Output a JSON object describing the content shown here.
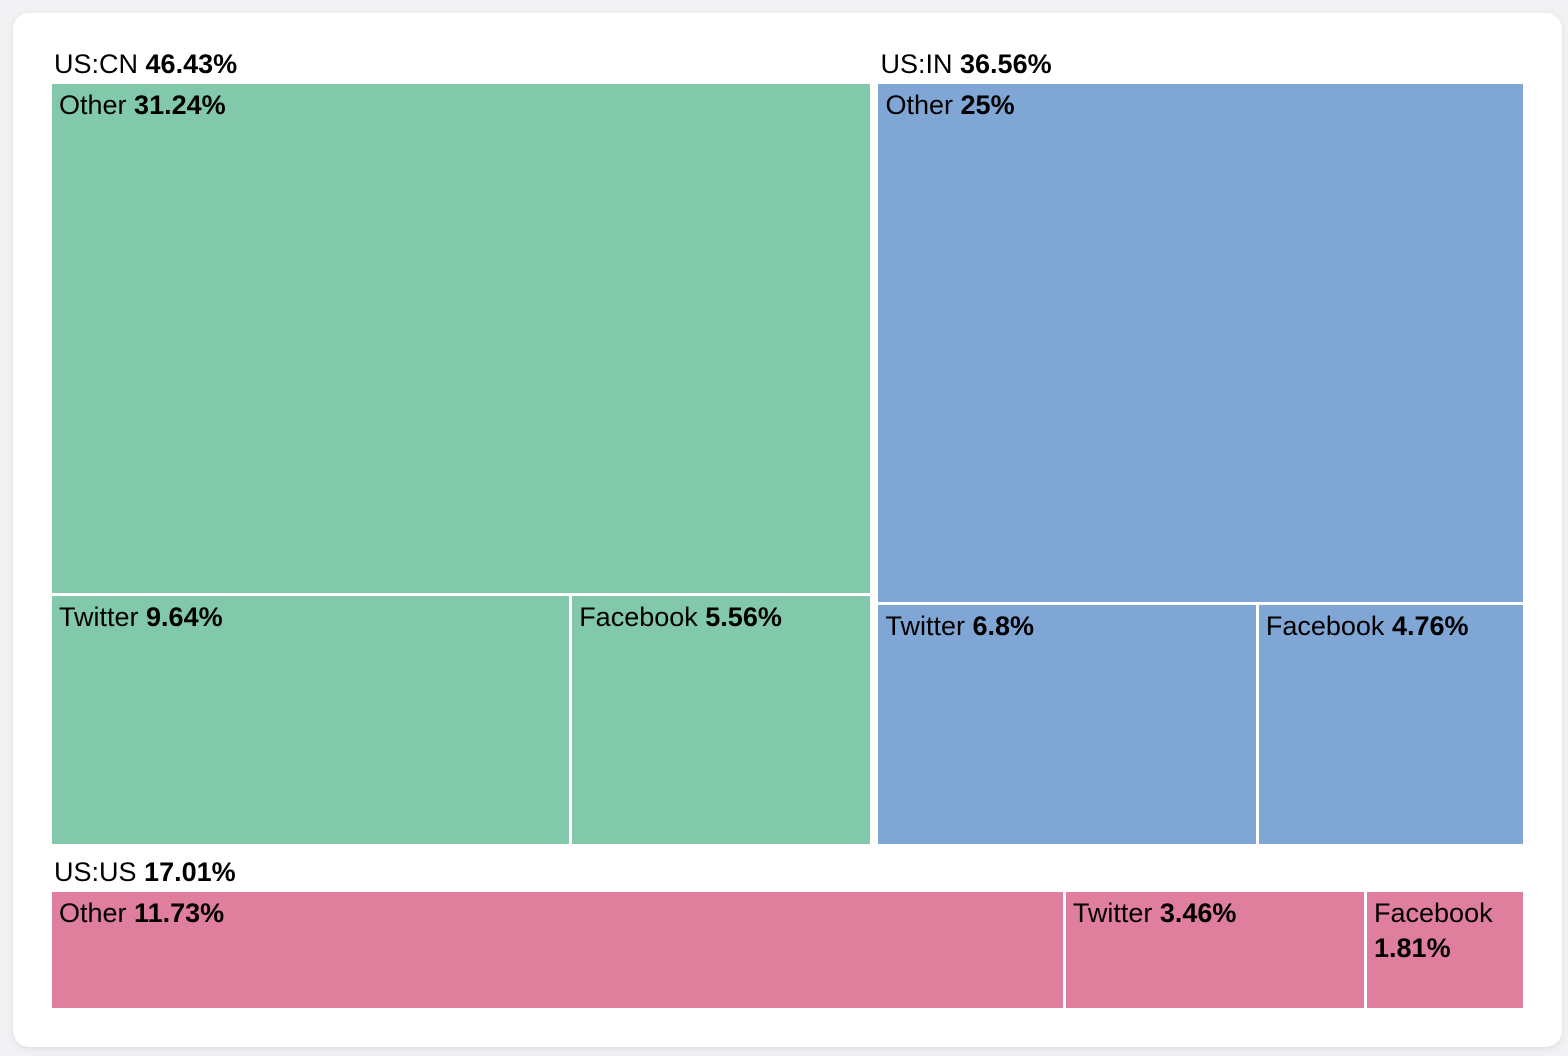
{
  "page": {
    "background_color": "#f2f2f5",
    "card_background_color": "#ffffff",
    "text_color": "#000000"
  },
  "chart_data": {
    "type": "treemap",
    "title": "",
    "value_format": "percent",
    "legend": "none",
    "layout_hints": {
      "top_row_groups": [
        "US:CN",
        "US:IN"
      ],
      "bottom_row_groups": [
        "US:US"
      ],
      "group_header_position": "above",
      "node_label_position": "top-left",
      "gap_color": "#ffffff"
    },
    "groups": [
      {
        "label": "US:CN",
        "value": 46.43,
        "value_display": "46.43%",
        "color": "#82c8aa",
        "children": [
          {
            "label": "Other",
            "value": 31.24,
            "value_display": "31.24%"
          },
          {
            "label": "Twitter",
            "value": 9.64,
            "value_display": "9.64%"
          },
          {
            "label": "Facebook",
            "value": 5.56,
            "value_display": "5.56%"
          }
        ]
      },
      {
        "label": "US:IN",
        "value": 36.56,
        "value_display": "36.56%",
        "color": "#7fa6d5",
        "children": [
          {
            "label": "Other",
            "value": 25,
            "value_display": "25%"
          },
          {
            "label": "Twitter",
            "value": 6.8,
            "value_display": "6.8%"
          },
          {
            "label": "Facebook",
            "value": 4.76,
            "value_display": "4.76%"
          }
        ]
      },
      {
        "label": "US:US",
        "value": 17.01,
        "value_display": "17.01%",
        "color": "#df7e9d",
        "children": [
          {
            "label": "Other",
            "value": 11.73,
            "value_display": "11.73%"
          },
          {
            "label": "Twitter",
            "value": 3.46,
            "value_display": "3.46%"
          },
          {
            "label": "Facebook",
            "value": 1.81,
            "value_display": "1.81%"
          }
        ]
      }
    ]
  }
}
